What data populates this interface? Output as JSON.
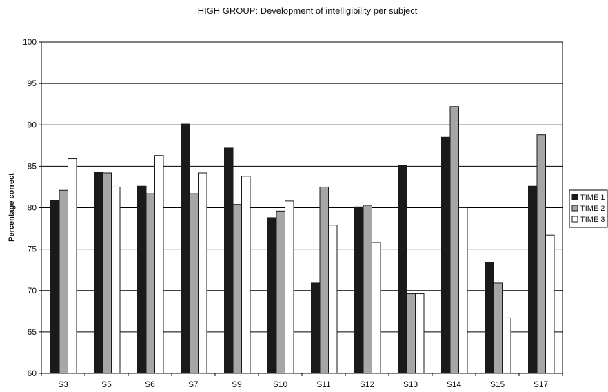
{
  "chart_data": {
    "type": "bar",
    "title": "HIGH GROUP: Development of intelligibility per subject",
    "xlabel": "",
    "ylabel": "Percentage correct",
    "ylim": [
      60,
      100
    ],
    "yticks": [
      60,
      65,
      70,
      75,
      80,
      85,
      90,
      95,
      100
    ],
    "grid": true,
    "legend_position": "right",
    "categories": [
      "S3",
      "S5",
      "S6",
      "S7",
      "S9",
      "S10",
      "S11",
      "S12",
      "S13",
      "S14",
      "S15",
      "S17"
    ],
    "series": [
      {
        "name": "TIME 1",
        "color": "#1a1a1a",
        "values": [
          80.9,
          84.3,
          82.6,
          90.1,
          87.2,
          78.8,
          70.9,
          80.1,
          85.1,
          88.5,
          73.4,
          82.6
        ]
      },
      {
        "name": "TIME 2",
        "color": "#a6a6a6",
        "values": [
          82.1,
          84.2,
          81.7,
          81.7,
          80.4,
          79.6,
          82.5,
          80.3,
          69.6,
          92.2,
          70.9,
          88.8
        ]
      },
      {
        "name": "TIME 3",
        "color": "#ffffff",
        "values": [
          85.9,
          82.5,
          86.3,
          84.2,
          83.8,
          80.8,
          77.9,
          75.8,
          69.6,
          80.0,
          66.7,
          76.7
        ]
      }
    ]
  }
}
